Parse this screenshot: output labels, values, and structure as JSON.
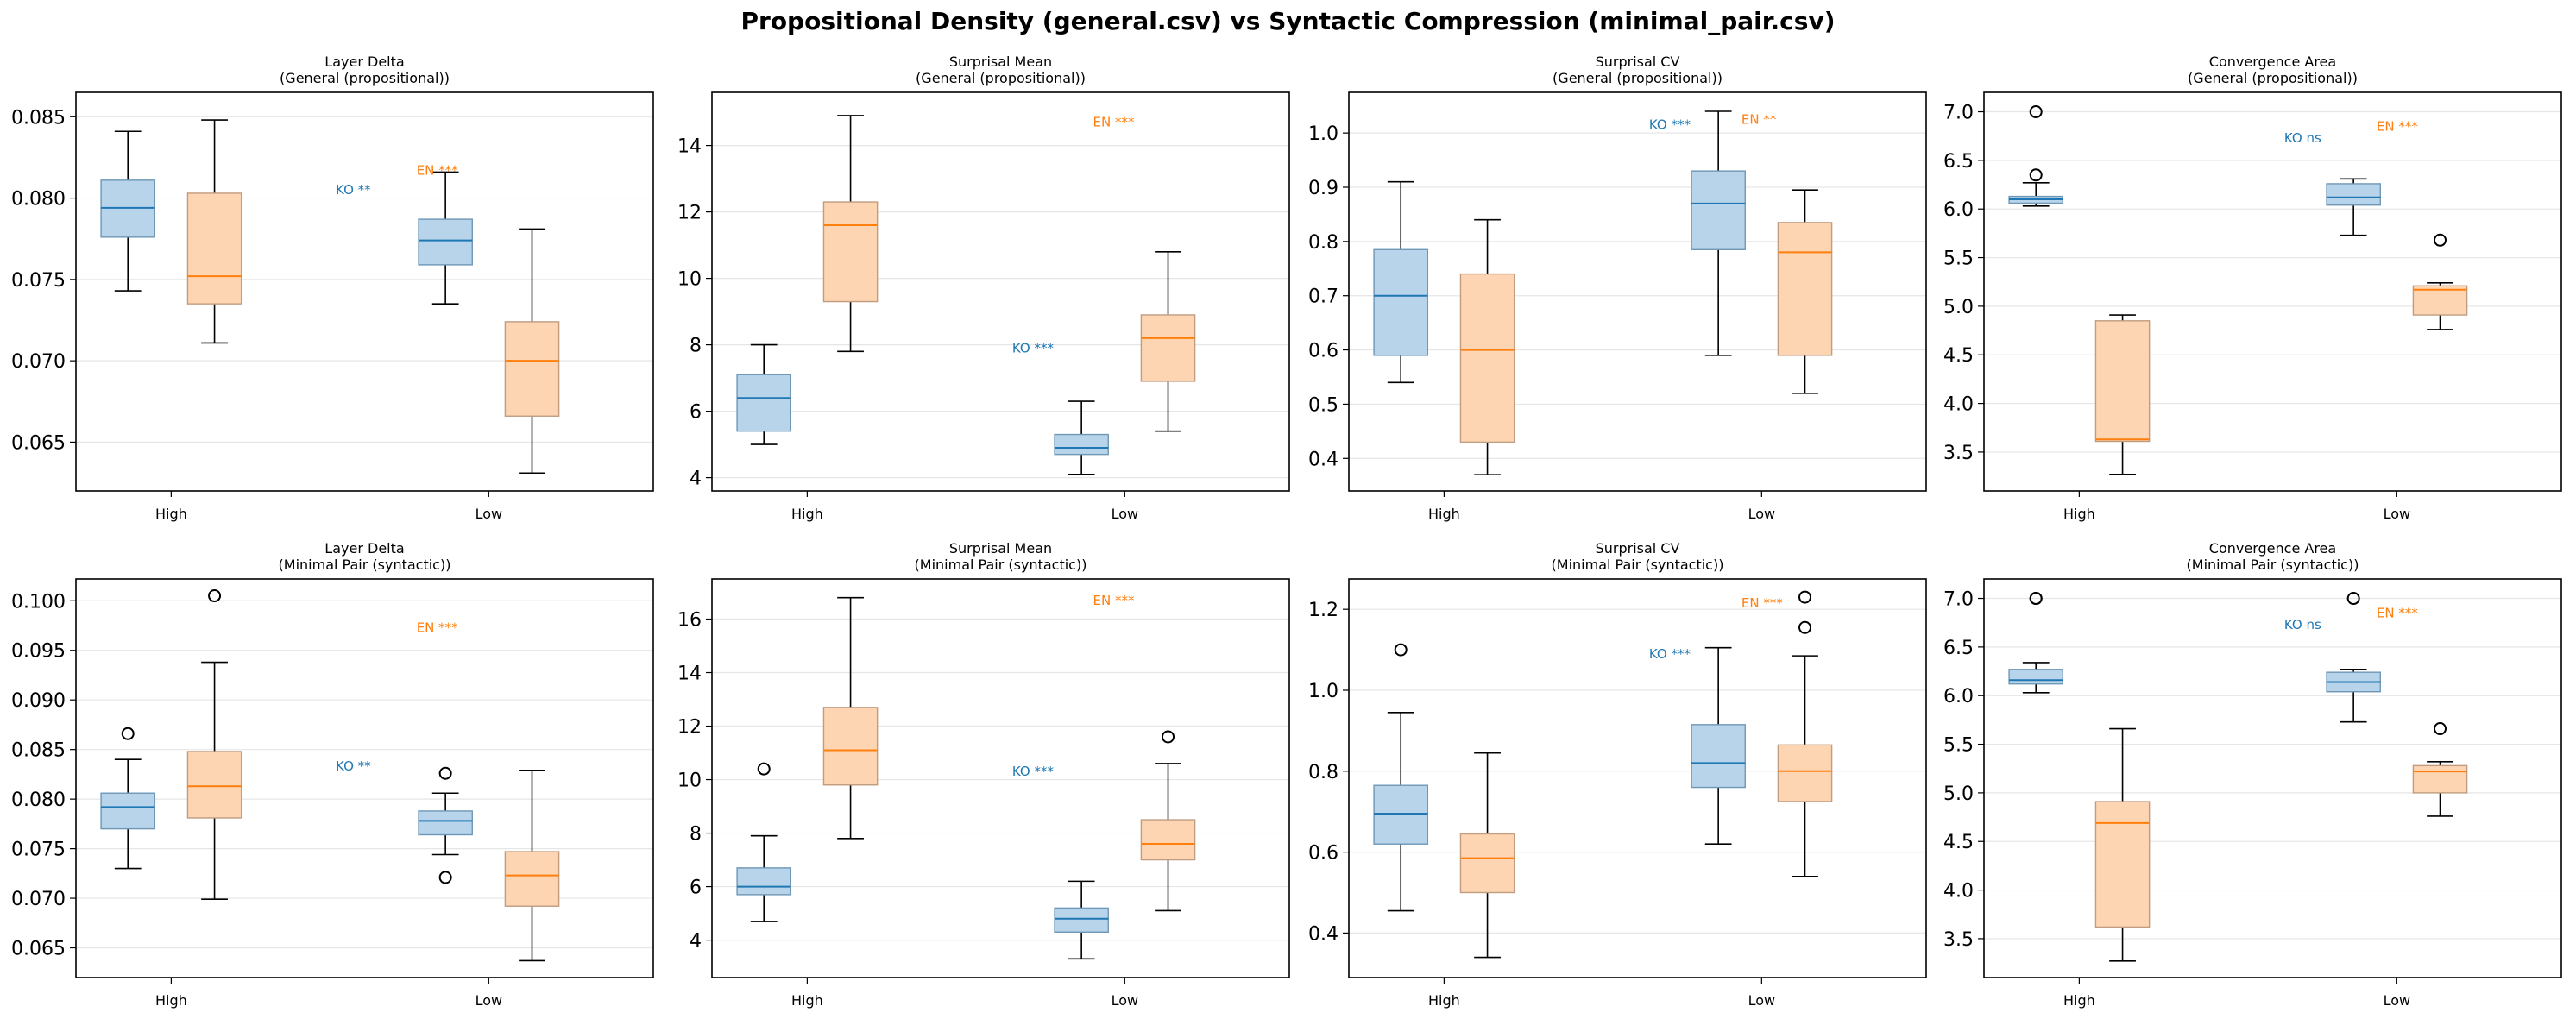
{
  "figure": {
    "title": "Propositional Density (general.csv) vs Syntactic Compression (minimal_pair.csv)",
    "colors": {
      "ko_fill": "#b8d4ea",
      "ko_edge": "#6f97b6",
      "ko_median": "#1f77b4",
      "en_fill": "#fdd5b2",
      "en_edge": "#c09c80",
      "en_median": "#ff7f0e",
      "ko_text": "#1f77b4",
      "en_text": "#ff7f0e"
    }
  },
  "chart_data": [
    {
      "type": "box",
      "title": "Layer Delta",
      "subtitle": "(General (propositional))",
      "categories": [
        "High",
        "Low"
      ],
      "ylim": [
        0.062,
        0.0865
      ],
      "yticks": [
        0.065,
        0.07,
        0.075,
        0.08,
        0.085
      ],
      "tick_decimals": 3,
      "grid": true,
      "boxes": [
        {
          "group": "High",
          "lang": "KO",
          "q1": 0.0776,
          "med": 0.0794,
          "q3": 0.0811,
          "wlo": 0.0743,
          "whi": 0.0841,
          "fliers": []
        },
        {
          "group": "High",
          "lang": "EN",
          "q1": 0.0735,
          "med": 0.0752,
          "q3": 0.0803,
          "wlo": 0.0711,
          "whi": 0.0848,
          "fliers": []
        },
        {
          "group": "Low",
          "lang": "KO",
          "q1": 0.0759,
          "med": 0.0774,
          "q3": 0.0787,
          "wlo": 0.0735,
          "whi": 0.0816,
          "fliers": []
        },
        {
          "group": "Low",
          "lang": "EN",
          "q1": 0.0666,
          "med": 0.07,
          "q3": 0.0724,
          "wlo": 0.0631,
          "whi": 0.0781,
          "fliers": []
        }
      ],
      "annotations": [
        {
          "lang": "KO",
          "text": "KO **",
          "x": 0.9,
          "y": 0.0805
        },
        {
          "lang": "EN",
          "text": "EN ***",
          "x": 1.18,
          "y": 0.0817
        }
      ]
    },
    {
      "type": "box",
      "title": "Surprisal Mean",
      "subtitle": "(General (propositional))",
      "categories": [
        "High",
        "Low"
      ],
      "ylim": [
        3.6,
        15.6
      ],
      "yticks": [
        4,
        6,
        8,
        10,
        12,
        14
      ],
      "tick_decimals": 0,
      "grid": true,
      "boxes": [
        {
          "group": "High",
          "lang": "KO",
          "q1": 5.4,
          "med": 6.4,
          "q3": 7.1,
          "wlo": 5.0,
          "whi": 8.0,
          "fliers": []
        },
        {
          "group": "High",
          "lang": "EN",
          "q1": 9.3,
          "med": 11.6,
          "q3": 12.3,
          "wlo": 7.8,
          "whi": 14.9,
          "fliers": []
        },
        {
          "group": "Low",
          "lang": "KO",
          "q1": 4.7,
          "med": 4.9,
          "q3": 5.3,
          "wlo": 4.1,
          "whi": 6.3,
          "fliers": []
        },
        {
          "group": "Low",
          "lang": "EN",
          "q1": 6.9,
          "med": 8.2,
          "q3": 8.9,
          "wlo": 5.4,
          "whi": 10.8,
          "fliers": []
        }
      ],
      "annotations": [
        {
          "lang": "EN",
          "text": "EN ***",
          "x": 1.32,
          "y": 14.7
        },
        {
          "lang": "KO",
          "text": "KO ***",
          "x": 1.04,
          "y": 7.9
        }
      ]
    },
    {
      "type": "box",
      "title": "Surprisal CV",
      "subtitle": "(General (propositional))",
      "categories": [
        "High",
        "Low"
      ],
      "ylim": [
        0.34,
        1.075
      ],
      "yticks": [
        0.4,
        0.5,
        0.6,
        0.7,
        0.8,
        0.9,
        1.0
      ],
      "tick_decimals": 1,
      "grid": true,
      "boxes": [
        {
          "group": "High",
          "lang": "KO",
          "q1": 0.59,
          "med": 0.7,
          "q3": 0.785,
          "wlo": 0.54,
          "whi": 0.91,
          "fliers": []
        },
        {
          "group": "High",
          "lang": "EN",
          "q1": 0.43,
          "med": 0.6,
          "q3": 0.74,
          "wlo": 0.37,
          "whi": 0.84,
          "fliers": []
        },
        {
          "group": "Low",
          "lang": "KO",
          "q1": 0.785,
          "med": 0.87,
          "q3": 0.93,
          "wlo": 0.59,
          "whi": 1.04,
          "fliers": []
        },
        {
          "group": "Low",
          "lang": "EN",
          "q1": 0.59,
          "med": 0.78,
          "q3": 0.835,
          "wlo": 0.52,
          "whi": 0.895,
          "fliers": []
        }
      ],
      "annotations": [
        {
          "lang": "KO",
          "text": "KO ***",
          "x": 1.04,
          "y": 1.015
        },
        {
          "lang": "EN",
          "text": "EN **",
          "x": 1.36,
          "y": 1.025
        }
      ]
    },
    {
      "type": "box",
      "title": "Convergence Area",
      "subtitle": "(General (propositional))",
      "categories": [
        "High",
        "Low"
      ],
      "ylim": [
        3.1,
        7.2
      ],
      "yticks": [
        3.5,
        4.0,
        4.5,
        5.0,
        5.5,
        6.0,
        6.5,
        7.0
      ],
      "tick_decimals": 1,
      "grid": true,
      "boxes": [
        {
          "group": "High",
          "lang": "KO",
          "q1": 6.06,
          "med": 6.1,
          "q3": 6.13,
          "wlo": 6.03,
          "whi": 6.27,
          "fliers": [
            7.0,
            6.35
          ]
        },
        {
          "group": "High",
          "lang": "EN",
          "q1": 3.61,
          "med": 3.63,
          "q3": 4.85,
          "wlo": 3.27,
          "whi": 4.91,
          "fliers": []
        },
        {
          "group": "Low",
          "lang": "KO",
          "q1": 6.04,
          "med": 6.12,
          "q3": 6.26,
          "wlo": 5.73,
          "whi": 6.31,
          "fliers": []
        },
        {
          "group": "Low",
          "lang": "EN",
          "q1": 4.91,
          "med": 5.17,
          "q3": 5.21,
          "wlo": 4.76,
          "whi": 5.24,
          "fliers": [
            5.68
          ]
        }
      ],
      "annotations": [
        {
          "lang": "KO",
          "text": "KO ns",
          "x": 1.04,
          "y": 6.73
        },
        {
          "lang": "EN",
          "text": "EN ***",
          "x": 1.36,
          "y": 6.85
        }
      ]
    },
    {
      "type": "box",
      "title": "Layer Delta",
      "subtitle": "(Minimal Pair (syntactic))",
      "categories": [
        "High",
        "Low"
      ],
      "ylim": [
        0.062,
        0.1022
      ],
      "yticks": [
        0.065,
        0.07,
        0.075,
        0.08,
        0.085,
        0.09,
        0.095,
        0.1
      ],
      "tick_decimals": 3,
      "grid": true,
      "boxes": [
        {
          "group": "High",
          "lang": "KO",
          "q1": 0.077,
          "med": 0.0792,
          "q3": 0.0806,
          "wlo": 0.073,
          "whi": 0.084,
          "fliers": [
            0.0866
          ]
        },
        {
          "group": "High",
          "lang": "EN",
          "q1": 0.0781,
          "med": 0.0813,
          "q3": 0.0848,
          "wlo": 0.0699,
          "whi": 0.0938,
          "fliers": [
            0.1005
          ]
        },
        {
          "group": "Low",
          "lang": "KO",
          "q1": 0.0764,
          "med": 0.0778,
          "q3": 0.0788,
          "wlo": 0.0744,
          "whi": 0.0806,
          "fliers": [
            0.0826,
            0.0721
          ]
        },
        {
          "group": "Low",
          "lang": "EN",
          "q1": 0.0692,
          "med": 0.0723,
          "q3": 0.0747,
          "wlo": 0.0637,
          "whi": 0.0829,
          "fliers": []
        }
      ],
      "annotations": [
        {
          "lang": "EN",
          "text": "EN ***",
          "x": 1.18,
          "y": 0.0973
        },
        {
          "lang": "KO",
          "text": "KO **",
          "x": 0.9,
          "y": 0.0833
        }
      ]
    },
    {
      "type": "box",
      "title": "Surprisal Mean",
      "subtitle": "(Minimal Pair (syntactic))",
      "categories": [
        "High",
        "Low"
      ],
      "ylim": [
        2.6,
        17.5
      ],
      "yticks": [
        4,
        6,
        8,
        10,
        12,
        14,
        16
      ],
      "tick_decimals": 0,
      "grid": true,
      "boxes": [
        {
          "group": "High",
          "lang": "KO",
          "q1": 5.7,
          "med": 6.0,
          "q3": 6.7,
          "wlo": 4.7,
          "whi": 7.9,
          "fliers": [
            10.4
          ]
        },
        {
          "group": "High",
          "lang": "EN",
          "q1": 9.8,
          "med": 11.1,
          "q3": 12.7,
          "wlo": 7.8,
          "whi": 16.8,
          "fliers": []
        },
        {
          "group": "Low",
          "lang": "KO",
          "q1": 4.3,
          "med": 4.8,
          "q3": 5.2,
          "wlo": 3.3,
          "whi": 6.2,
          "fliers": []
        },
        {
          "group": "Low",
          "lang": "EN",
          "q1": 7.0,
          "med": 7.6,
          "q3": 8.5,
          "wlo": 5.1,
          "whi": 10.6,
          "fliers": [
            11.6
          ]
        }
      ],
      "annotations": [
        {
          "lang": "EN",
          "text": "EN ***",
          "x": 1.32,
          "y": 16.7
        },
        {
          "lang": "KO",
          "text": "KO ***",
          "x": 1.04,
          "y": 10.3
        }
      ]
    },
    {
      "type": "box",
      "title": "Surprisal CV",
      "subtitle": "(Minimal Pair (syntactic))",
      "categories": [
        "High",
        "Low"
      ],
      "ylim": [
        0.29,
        1.275
      ],
      "yticks": [
        0.4,
        0.6,
        0.8,
        1.0,
        1.2
      ],
      "tick_decimals": 1,
      "grid": true,
      "boxes": [
        {
          "group": "High",
          "lang": "KO",
          "q1": 0.62,
          "med": 0.695,
          "q3": 0.765,
          "wlo": 0.455,
          "whi": 0.945,
          "fliers": [
            1.1
          ]
        },
        {
          "group": "High",
          "lang": "EN",
          "q1": 0.5,
          "med": 0.585,
          "q3": 0.645,
          "wlo": 0.34,
          "whi": 0.845,
          "fliers": []
        },
        {
          "group": "Low",
          "lang": "KO",
          "q1": 0.76,
          "med": 0.82,
          "q3": 0.915,
          "wlo": 0.62,
          "whi": 1.105,
          "fliers": []
        },
        {
          "group": "Low",
          "lang": "EN",
          "q1": 0.725,
          "med": 0.8,
          "q3": 0.865,
          "wlo": 0.54,
          "whi": 1.085,
          "fliers": [
            1.23,
            1.155
          ]
        }
      ],
      "annotations": [
        {
          "lang": "KO",
          "text": "KO ***",
          "x": 1.04,
          "y": 1.09
        },
        {
          "lang": "EN",
          "text": "EN ***",
          "x": 1.36,
          "y": 1.215
        }
      ]
    },
    {
      "type": "box",
      "title": "Convergence Area",
      "subtitle": "(Minimal Pair (syntactic))",
      "categories": [
        "High",
        "Low"
      ],
      "ylim": [
        3.1,
        7.2
      ],
      "yticks": [
        3.5,
        4.0,
        4.5,
        5.0,
        5.5,
        6.0,
        6.5,
        7.0
      ],
      "tick_decimals": 1,
      "grid": true,
      "boxes": [
        {
          "group": "High",
          "lang": "KO",
          "q1": 6.12,
          "med": 6.16,
          "q3": 6.27,
          "wlo": 6.03,
          "whi": 6.34,
          "fliers": [
            7.0,
            7.0
          ]
        },
        {
          "group": "High",
          "lang": "EN",
          "q1": 3.62,
          "med": 4.69,
          "q3": 4.91,
          "wlo": 3.27,
          "whi": 5.66,
          "fliers": []
        },
        {
          "group": "Low",
          "lang": "KO",
          "q1": 6.04,
          "med": 6.14,
          "q3": 6.24,
          "wlo": 5.73,
          "whi": 6.27,
          "fliers": [
            7.0
          ]
        },
        {
          "group": "Low",
          "lang": "EN",
          "q1": 5.0,
          "med": 5.22,
          "q3": 5.28,
          "wlo": 4.76,
          "whi": 5.32,
          "fliers": [
            5.66
          ]
        }
      ],
      "annotations": [
        {
          "lang": "KO",
          "text": "KO ns",
          "x": 1.04,
          "y": 6.73
        },
        {
          "lang": "EN",
          "text": "EN ***",
          "x": 1.36,
          "y": 6.85
        }
      ]
    }
  ]
}
